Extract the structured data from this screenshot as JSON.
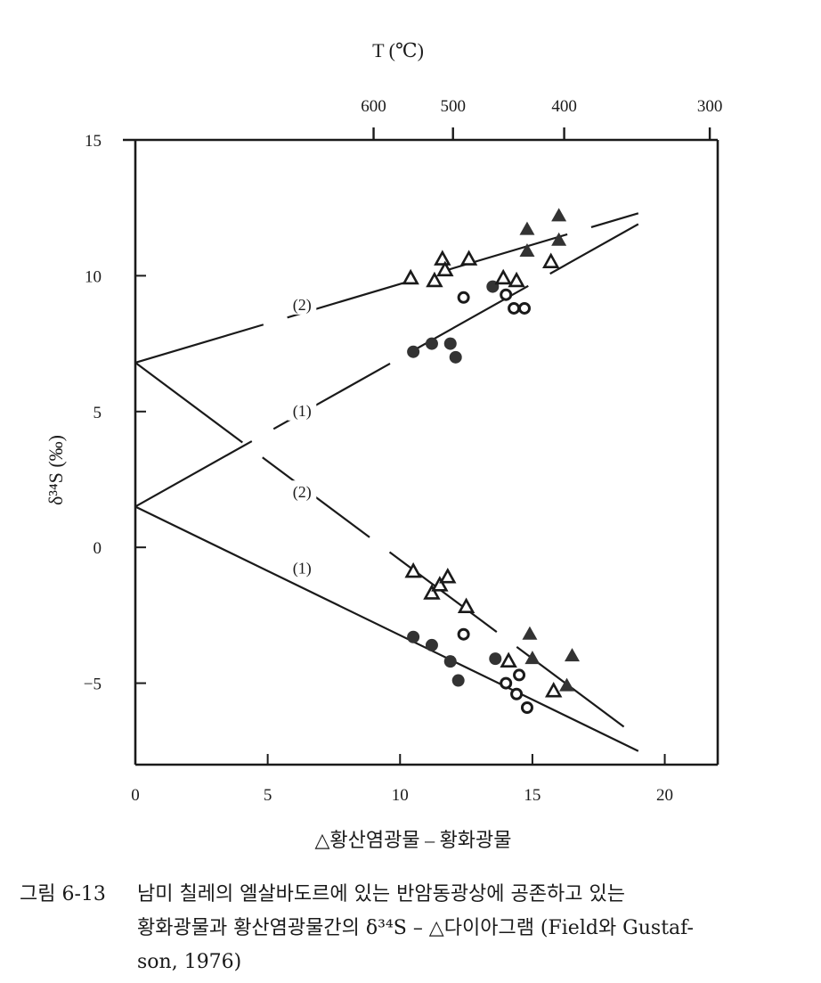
{
  "caption": {
    "number": "그림 6-13",
    "line1": "남미 칠레의 엘살바도르에 있는 반암동광상에 공존하고 있는",
    "line2": "황화광물과 황산염광물간의 δ³⁴S – △다이아그램 (Field와 Gustaf-",
    "line3": "son, 1976)"
  },
  "chart_data": {
    "type": "scatter",
    "xlabel": "△황산염광물 – 황화광물",
    "ylabel": "δ³⁴S (‰)",
    "x2label": "T (℃)",
    "xlim": [
      0,
      22
    ],
    "ylim": [
      -8,
      15
    ],
    "xticks": [
      0,
      5,
      10,
      15,
      20
    ],
    "yticks": [
      -5,
      0,
      5,
      10,
      15
    ],
    "top_ticks": [
      {
        "label": "600",
        "x": 9.0
      },
      {
        "label": "500",
        "x": 12.0
      },
      {
        "label": "400",
        "x": 16.2
      },
      {
        "label": "300",
        "x": 21.7
      }
    ],
    "grid": false,
    "annotations": [
      {
        "text": "(2)",
        "x": 6.3,
        "y": 8.9
      },
      {
        "text": "(1)",
        "x": 6.3,
        "y": 5.0
      },
      {
        "text": "(2)",
        "x": 6.3,
        "y": 2.0
      },
      {
        "text": "(1)",
        "x": 6.3,
        "y": -0.8
      }
    ],
    "lines": [
      {
        "label": "(2)",
        "style": "dashed",
        "points": [
          [
            0,
            6.8
          ],
          [
            19,
            12.3
          ]
        ]
      },
      {
        "label": "(1)",
        "style": "dashed",
        "points": [
          [
            0,
            1.5
          ],
          [
            19,
            11.9
          ]
        ]
      },
      {
        "label": "(2)",
        "style": "dashed",
        "points": [
          [
            0,
            6.8
          ],
          [
            19,
            -7.0
          ]
        ]
      },
      {
        "label": "(1)",
        "style": "solid",
        "points": [
          [
            0,
            1.5
          ],
          [
            19,
            -7.5
          ]
        ]
      }
    ],
    "series": [
      {
        "marker": "filled-circle",
        "points": [
          [
            10.5,
            7.2
          ],
          [
            11.2,
            7.5
          ],
          [
            11.9,
            7.5
          ],
          [
            12.1,
            7.0
          ],
          [
            13.5,
            9.6
          ],
          [
            10.5,
            -3.3
          ],
          [
            11.2,
            -3.6
          ],
          [
            11.9,
            -4.2
          ],
          [
            12.2,
            -4.9
          ],
          [
            13.6,
            -4.1
          ]
        ]
      },
      {
        "marker": "open-circle",
        "points": [
          [
            12.4,
            9.2
          ],
          [
            14.0,
            9.3
          ],
          [
            14.3,
            8.8
          ],
          [
            14.7,
            8.8
          ],
          [
            12.4,
            -3.2
          ],
          [
            14.0,
            -5.0
          ],
          [
            14.4,
            -5.4
          ],
          [
            14.8,
            -5.9
          ],
          [
            14.5,
            -4.7
          ]
        ]
      },
      {
        "marker": "filled-triangle",
        "points": [
          [
            14.8,
            11.7
          ],
          [
            14.8,
            10.9
          ],
          [
            16.0,
            12.2
          ],
          [
            16.0,
            11.3
          ],
          [
            14.9,
            -3.2
          ],
          [
            15.0,
            -4.1
          ],
          [
            16.3,
            -5.1
          ],
          [
            16.5,
            -4.0
          ]
        ]
      },
      {
        "marker": "open-triangle",
        "points": [
          [
            10.4,
            9.9
          ],
          [
            11.3,
            9.8
          ],
          [
            11.6,
            10.6
          ],
          [
            11.7,
            10.2
          ],
          [
            12.6,
            10.6
          ],
          [
            13.9,
            9.9
          ],
          [
            14.4,
            9.8
          ],
          [
            15.7,
            10.5
          ],
          [
            10.5,
            -0.9
          ],
          [
            11.2,
            -1.7
          ],
          [
            11.5,
            -1.4
          ],
          [
            11.8,
            -1.1
          ],
          [
            12.5,
            -2.2
          ],
          [
            14.1,
            -4.2
          ],
          [
            15.8,
            -5.3
          ]
        ]
      }
    ]
  }
}
